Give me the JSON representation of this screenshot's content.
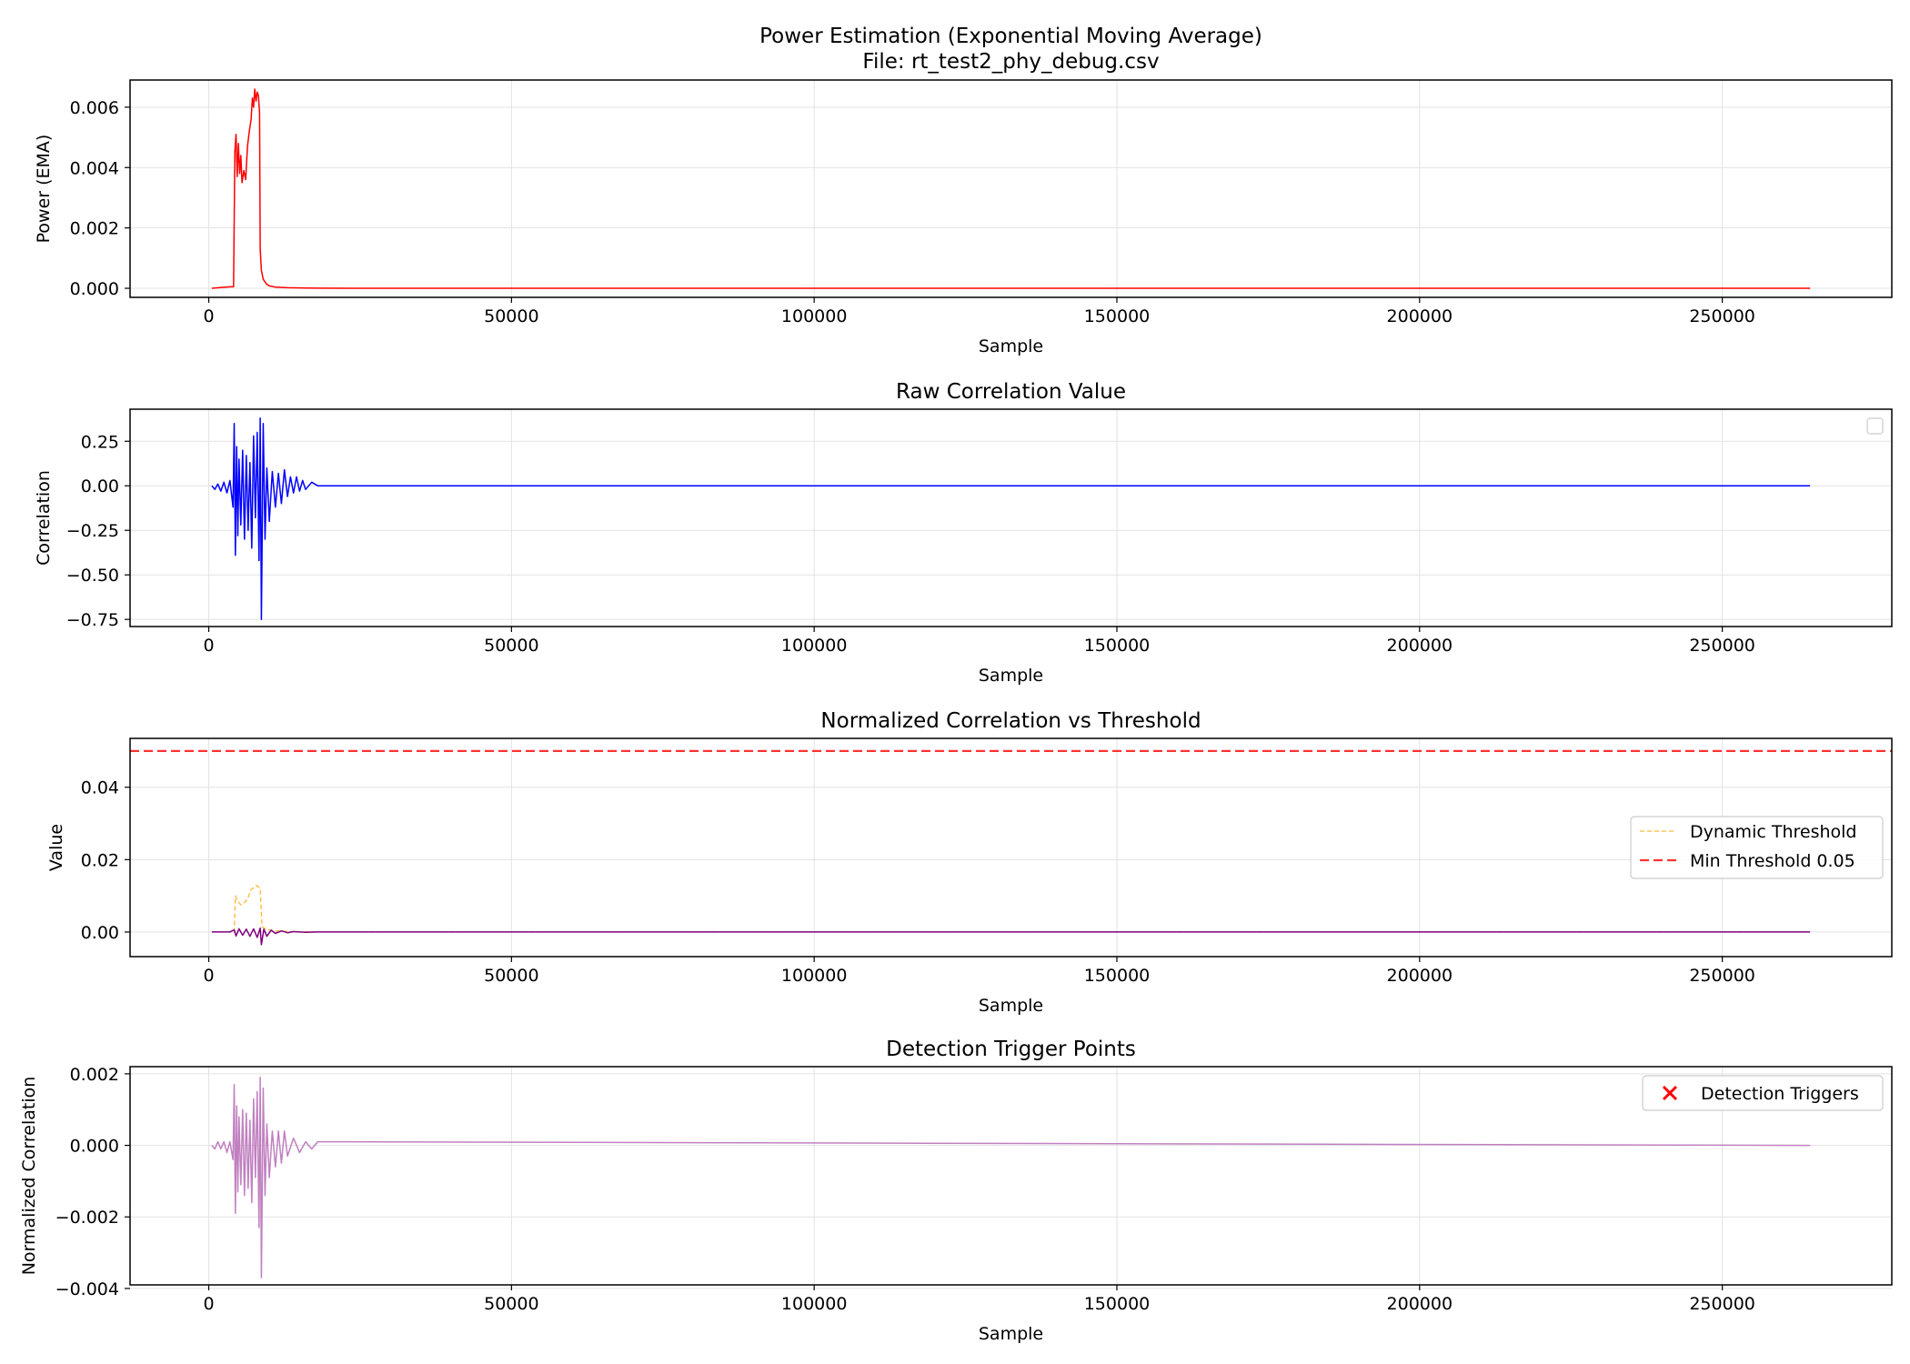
{
  "figure": {
    "suptitle": "Power Estimation (Exponential Moving Average)\nFile: rt_test2_phy_debug.csv"
  },
  "chart_data": [
    {
      "type": "line",
      "title": "Power Estimation (Exponential Moving Average)",
      "subtitle": "File: rt_test2_phy_debug.csv",
      "xlabel": "Sample",
      "ylabel": "Power (EMA)",
      "xlim": [
        -13000,
        278000
      ],
      "ylim": [
        -0.0003,
        0.0069
      ],
      "xticks": [
        0,
        50000,
        100000,
        150000,
        200000,
        250000
      ],
      "yticks": [
        0.0,
        0.002,
        0.004,
        0.006
      ],
      "ytick_labels": [
        "0.000",
        "0.002",
        "0.004",
        "0.006"
      ],
      "grid": true,
      "legend": null,
      "series": [
        {
          "name": "Power (EMA)",
          "color": "#ff0000",
          "style": "solid",
          "x": [
            500,
            3500,
            4100,
            4300,
            4500,
            4700,
            4900,
            5100,
            5300,
            5500,
            5800,
            6100,
            6400,
            6700,
            7000,
            7200,
            7400,
            7600,
            7800,
            8000,
            8200,
            8400,
            8500,
            8700,
            9000,
            9500,
            10000,
            11000,
            13000,
            16000,
            18000,
            30000,
            264500
          ],
          "values": [
            0.0,
            5e-05,
            5e-05,
            0.0045,
            0.0051,
            0.0037,
            0.0048,
            0.0038,
            0.0044,
            0.0035,
            0.0039,
            0.0036,
            0.0047,
            0.0052,
            0.0056,
            0.0063,
            0.006,
            0.0066,
            0.0062,
            0.0065,
            0.0064,
            0.0058,
            0.0013,
            0.0006,
            0.0003,
            0.00015,
            8e-05,
            4e-05,
            2e-05,
            1e-05,
            5e-06,
            0.0,
            0.0
          ]
        }
      ]
    },
    {
      "type": "line",
      "title": "Raw Correlation Value",
      "xlabel": "Sample",
      "ylabel": "Correlation",
      "xlim": [
        -13000,
        278000
      ],
      "ylim": [
        -0.79,
        0.43
      ],
      "xticks": [
        0,
        50000,
        100000,
        150000,
        200000,
        250000
      ],
      "yticks": [
        -0.75,
        -0.5,
        -0.25,
        0.0,
        0.25
      ],
      "ytick_labels": [
        "−0.75",
        "−0.50",
        "−0.25",
        "0.00",
        "0.25"
      ],
      "grid": true,
      "legend": "top-right (empty)",
      "series": [
        {
          "name": "Raw Correlation",
          "color": "#0000ff",
          "style": "solid",
          "x": [
            500,
            1000,
            1500,
            2000,
            2500,
            3000,
            3500,
            4000,
            4200,
            4400,
            4600,
            4800,
            5000,
            5300,
            5600,
            5900,
            6200,
            6500,
            6800,
            7100,
            7400,
            7700,
            8000,
            8300,
            8500,
            8700,
            9000,
            9300,
            9600,
            10000,
            10500,
            11000,
            11500,
            12000,
            12500,
            13000,
            13500,
            14000,
            14500,
            15000,
            15500,
            16000,
            17000,
            18000,
            264500
          ],
          "values": [
            0.0,
            -0.02,
            0.01,
            -0.03,
            0.02,
            -0.04,
            0.03,
            -0.12,
            0.35,
            -0.39,
            0.22,
            -0.28,
            0.15,
            -0.22,
            0.2,
            -0.3,
            0.17,
            -0.25,
            0.13,
            -0.35,
            0.28,
            -0.18,
            0.3,
            -0.42,
            0.38,
            -0.75,
            0.35,
            -0.3,
            0.1,
            -0.2,
            0.08,
            -0.12,
            0.07,
            -0.1,
            0.09,
            -0.06,
            0.05,
            -0.04,
            0.05,
            -0.03,
            0.03,
            -0.02,
            0.02,
            0.0,
            0.0
          ]
        }
      ]
    },
    {
      "type": "line",
      "title": "Normalized Correlation vs Threshold",
      "xlabel": "Sample",
      "ylabel": "Value",
      "xlim": [
        -13000,
        278000
      ],
      "ylim": [
        -0.0068,
        0.0535
      ],
      "xticks": [
        0,
        50000,
        100000,
        150000,
        200000,
        250000
      ],
      "yticks": [
        0.0,
        0.02,
        0.04
      ],
      "ytick_labels": [
        "0.00",
        "0.02",
        "0.04"
      ],
      "grid": true,
      "legend": "center-right",
      "series": [
        {
          "name": "Dynamic Threshold",
          "color": "#ffa500",
          "style": "dashed-thin",
          "x": [
            500,
            3500,
            4200,
            4400,
            4800,
            5300,
            5800,
            6400,
            7000,
            7400,
            7800,
            8200,
            8500,
            8800,
            9500,
            11000,
            14000,
            20000,
            264500
          ],
          "values": [
            0.0,
            0.0,
            0.0,
            0.01,
            0.0085,
            0.0075,
            0.008,
            0.009,
            0.0118,
            0.0122,
            0.0129,
            0.0125,
            0.012,
            0.0015,
            0.0007,
            0.0003,
            0.0001,
            0.0,
            0.0
          ]
        },
        {
          "name": "Min Threshold 0.05",
          "color": "#ff0000",
          "style": "dashed",
          "x": [
            -13000,
            278000
          ],
          "values": [
            0.05,
            0.05
          ]
        },
        {
          "name": "Normalized Correlation",
          "color": "#800080",
          "style": "solid",
          "x": [
            500,
            3500,
            4200,
            4500,
            5000,
            5600,
            6200,
            6800,
            7400,
            8000,
            8500,
            8700,
            9100,
            9600,
            10300,
            11000,
            12000,
            13000,
            14000,
            16000,
            18000,
            264500
          ],
          "values": [
            0.0,
            0.0,
            0.0006,
            -0.0011,
            0.0009,
            -0.0009,
            0.0008,
            -0.0012,
            0.0009,
            -0.0015,
            0.0011,
            -0.0035,
            0.0008,
            -0.0012,
            0.0005,
            -0.0004,
            0.0003,
            -0.0002,
            0.0001,
            -0.0001,
            0.0,
            0.0
          ]
        }
      ]
    },
    {
      "type": "line",
      "title": "Detection Trigger Points",
      "xlabel": "Sample",
      "ylabel": "Normalized Correlation",
      "xlim": [
        -13000,
        278000
      ],
      "ylim": [
        -0.0039,
        0.0022
      ],
      "xticks": [
        0,
        50000,
        100000,
        150000,
        200000,
        250000
      ],
      "yticks": [
        -0.004,
        -0.002,
        0.0,
        0.002
      ],
      "ytick_labels": [
        "−0.004",
        "−0.002",
        "0.000",
        "0.002"
      ],
      "grid": true,
      "legend": "top-right",
      "series": [
        {
          "name": "Normalized Correlation",
          "color": "#c080c0",
          "style": "solid",
          "x": [
            500,
            1000,
            1500,
            2000,
            2500,
            3000,
            3500,
            4000,
            4200,
            4400,
            4600,
            4800,
            5000,
            5300,
            5600,
            5900,
            6200,
            6500,
            6800,
            7100,
            7400,
            7700,
            8000,
            8300,
            8500,
            8700,
            9000,
            9300,
            9600,
            10000,
            10500,
            11000,
            11500,
            12000,
            12500,
            13000,
            14000,
            15000,
            16000,
            17000,
            18000,
            264500
          ],
          "values": [
            0.0,
            -0.0001,
            0.0001,
            -0.0001,
            0.0001,
            -0.0002,
            0.0001,
            -0.0004,
            0.0017,
            -0.0019,
            0.0011,
            -0.0013,
            0.0008,
            -0.0011,
            0.001,
            -0.0014,
            0.0009,
            -0.0012,
            0.0007,
            -0.0016,
            0.0013,
            -0.0009,
            0.0015,
            -0.0023,
            0.0019,
            -0.0037,
            0.0016,
            -0.0014,
            0.0006,
            -0.0009,
            0.0004,
            -0.0006,
            0.0004,
            -0.0005,
            0.0004,
            -0.0003,
            0.0002,
            -0.0002,
            0.0001,
            -0.0001,
            0.0001,
            0.0
          ]
        },
        {
          "name": "Detection Triggers",
          "color": "#ff0000",
          "style": "marker-x",
          "x": [],
          "values": []
        }
      ]
    }
  ]
}
